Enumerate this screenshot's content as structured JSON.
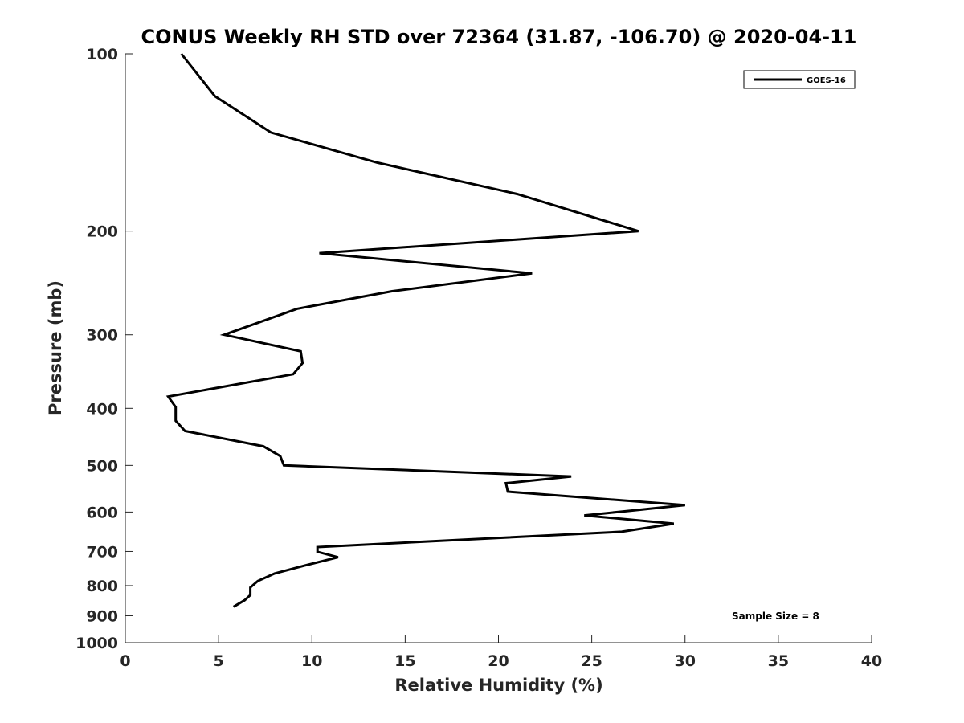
{
  "chart_data": {
    "type": "line",
    "title": "CONUS Weekly RH STD over 72364 (31.87, -106.70) @ 2020-04-11",
    "xlabel": "Relative Humidity (%)",
    "ylabel": "Pressure (mb)",
    "xlim": [
      0,
      40
    ],
    "ylim": [
      100,
      1000
    ],
    "y_scale": "log",
    "y_reversed": true,
    "grid": false,
    "legend_position": "top-right",
    "x_ticks": [
      "0",
      "5",
      "10",
      "15",
      "20",
      "25",
      "30",
      "35",
      "40"
    ],
    "y_ticks": [
      "100",
      "200",
      "300",
      "400",
      "500",
      "600",
      "700",
      "800",
      "900",
      "1000"
    ],
    "series": [
      {
        "name": "GOES-16",
        "color": "#000000",
        "points": [
          {
            "x": 3.0,
            "y": 100
          },
          {
            "x": 4.8,
            "y": 118
          },
          {
            "x": 7.8,
            "y": 136
          },
          {
            "x": 13.5,
            "y": 153
          },
          {
            "x": 21.0,
            "y": 173
          },
          {
            "x": 27.5,
            "y": 200
          },
          {
            "x": 10.4,
            "y": 218
          },
          {
            "x": 21.8,
            "y": 236
          },
          {
            "x": 14.3,
            "y": 253
          },
          {
            "x": 9.2,
            "y": 271
          },
          {
            "x": 5.3,
            "y": 300
          },
          {
            "x": 9.4,
            "y": 320
          },
          {
            "x": 9.5,
            "y": 335
          },
          {
            "x": 9.0,
            "y": 350
          },
          {
            "x": 2.3,
            "y": 382
          },
          {
            "x": 2.7,
            "y": 398
          },
          {
            "x": 2.7,
            "y": 420
          },
          {
            "x": 3.2,
            "y": 437
          },
          {
            "x": 7.4,
            "y": 464
          },
          {
            "x": 8.3,
            "y": 482
          },
          {
            "x": 8.5,
            "y": 500
          },
          {
            "x": 23.9,
            "y": 522
          },
          {
            "x": 20.4,
            "y": 536
          },
          {
            "x": 20.5,
            "y": 554
          },
          {
            "x": 30.0,
            "y": 584
          },
          {
            "x": 24.6,
            "y": 608
          },
          {
            "x": 29.4,
            "y": 628
          },
          {
            "x": 26.6,
            "y": 648
          },
          {
            "x": 10.3,
            "y": 688
          },
          {
            "x": 10.3,
            "y": 701
          },
          {
            "x": 11.4,
            "y": 716
          },
          {
            "x": 9.6,
            "y": 740
          },
          {
            "x": 8.0,
            "y": 763
          },
          {
            "x": 7.1,
            "y": 786
          },
          {
            "x": 6.7,
            "y": 806
          },
          {
            "x": 6.7,
            "y": 830
          },
          {
            "x": 6.4,
            "y": 847
          },
          {
            "x": 5.8,
            "y": 869
          }
        ]
      }
    ],
    "annotations": [
      "Sample Size = 8"
    ]
  }
}
